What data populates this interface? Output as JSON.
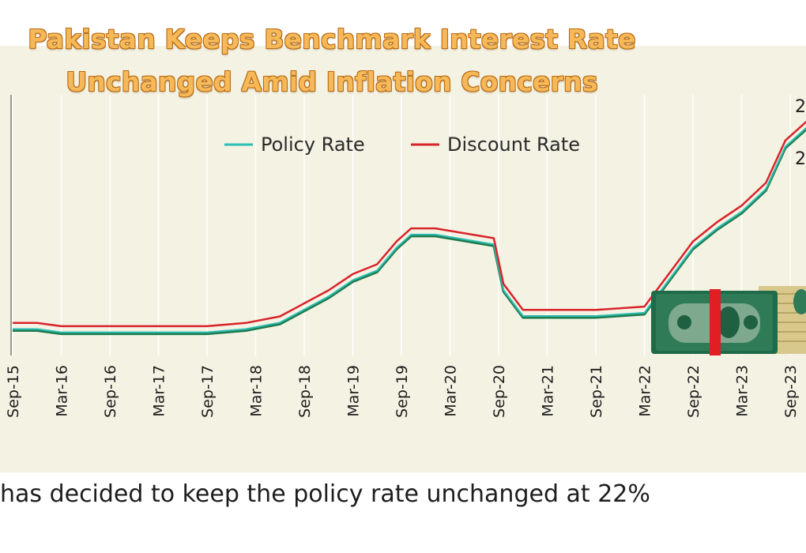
{
  "headline": {
    "line1": "Pakistan Keeps Benchmark Interest Rate",
    "line2": "Unchanged Amid Inflation Concerns"
  },
  "caption": "has decided to keep the policy rate unchanged at 22%",
  "colors": {
    "policy": "#2bbfb3",
    "discount": "#d9232b",
    "policy_shadow": "#1f7a4d",
    "banknote": "#2f7a57",
    "band": "#e01e24",
    "coins": "#d8c88c"
  },
  "icons": [
    "banknote-icon",
    "coin-stack-icon"
  ],
  "chart_data": {
    "type": "line",
    "title": "",
    "xlabel": "",
    "ylabel": "",
    "ylim": [
      4,
      24
    ],
    "grid": "vertical",
    "legend": "top-center",
    "categories": [
      "Sep-15",
      "Mar-16",
      "Sep-16",
      "Mar-17",
      "Sep-17",
      "Mar-18",
      "Sep-18",
      "Mar-19",
      "Sep-19",
      "Mar-20",
      "Sep-20",
      "Mar-21",
      "Sep-21",
      "Mar-22",
      "Sep-22",
      "Mar-23",
      "Sep-23"
    ],
    "right_edge_labels": [
      "2",
      "2"
    ],
    "series": [
      {
        "name": "Policy Rate",
        "points": [
          [
            0,
            6.0
          ],
          [
            0.5,
            6.0
          ],
          [
            1,
            5.75
          ],
          [
            2,
            5.75
          ],
          [
            3,
            5.75
          ],
          [
            4,
            5.75
          ],
          [
            4.8,
            6.0
          ],
          [
            5.5,
            6.5
          ],
          [
            6,
            7.5
          ],
          [
            6.5,
            8.5
          ],
          [
            7,
            9.75
          ],
          [
            7.5,
            10.5
          ],
          [
            7.9,
            12.25
          ],
          [
            8.2,
            13.25
          ],
          [
            8.7,
            13.25
          ],
          [
            9.9,
            12.5
          ],
          [
            10.1,
            9.0
          ],
          [
            10.5,
            7.0
          ],
          [
            11,
            7.0
          ],
          [
            12,
            7.0
          ],
          [
            13,
            7.25
          ],
          [
            13.5,
            9.75
          ],
          [
            14,
            12.25
          ],
          [
            14.5,
            13.75
          ],
          [
            15,
            15.0
          ],
          [
            15.5,
            16.75
          ],
          [
            15.9,
            20.0
          ],
          [
            16.2,
            21.0
          ],
          [
            16.5,
            22.0
          ],
          [
            17,
            22.0
          ]
        ]
      },
      {
        "name": "Discount Rate",
        "points": [
          [
            0,
            6.5
          ],
          [
            0.5,
            6.5
          ],
          [
            1,
            6.25
          ],
          [
            2,
            6.25
          ],
          [
            3,
            6.25
          ],
          [
            4,
            6.25
          ],
          [
            4.8,
            6.5
          ],
          [
            5.5,
            7.0
          ],
          [
            6,
            8.0
          ],
          [
            6.5,
            9.0
          ],
          [
            7,
            10.25
          ],
          [
            7.5,
            11.0
          ],
          [
            7.9,
            12.75
          ],
          [
            8.2,
            13.75
          ],
          [
            8.7,
            13.75
          ],
          [
            9.9,
            13.0
          ],
          [
            10.1,
            9.5
          ],
          [
            10.5,
            7.5
          ],
          [
            11,
            7.5
          ],
          [
            12,
            7.5
          ],
          [
            13,
            7.75
          ],
          [
            13.5,
            10.25
          ],
          [
            14,
            12.75
          ],
          [
            14.5,
            14.25
          ],
          [
            15,
            15.5
          ],
          [
            15.5,
            17.25
          ],
          [
            15.9,
            20.5
          ],
          [
            16.2,
            21.5
          ],
          [
            16.5,
            22.5
          ],
          [
            17,
            22.5
          ]
        ]
      }
    ]
  }
}
